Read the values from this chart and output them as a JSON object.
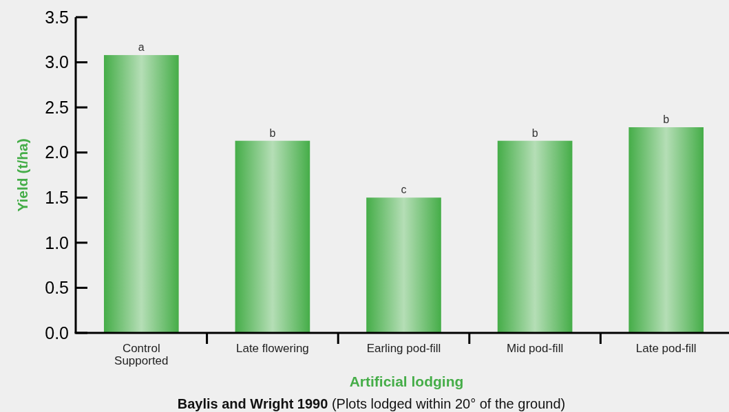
{
  "chart_data": {
    "type": "bar",
    "xlabel": "Artificial lodging",
    "ylabel": "Yield (t/ha)",
    "categories": [
      "Control\nSupported",
      "Late flowering",
      "Earling pod-fill",
      "Mid pod-fill",
      "Late pod-fill"
    ],
    "values": [
      3.08,
      2.13,
      1.5,
      2.13,
      2.28
    ],
    "color": "#45ad48",
    "ylim": [
      0,
      3.5
    ],
    "yticks": [
      {
        "value": 0,
        "label": "0.0"
      },
      0.5,
      {
        "value": 1,
        "label": "1.0"
      },
      1.5,
      {
        "value": 2,
        "label": "2.0"
      },
      2.5,
      {
        "value": 3,
        "label": "3.0"
      },
      3.5
    ],
    "grid": false,
    "annotations": [
      {
        "text": "a",
        "x": "Control\nSupported",
        "y": 3.08
      },
      {
        "text": "b",
        "x": "Late flowering",
        "y": 2.13
      },
      {
        "text": "c",
        "x": "Earling pod-fill",
        "y": 1.5
      },
      {
        "text": "b",
        "x": "Mid pod-fill",
        "y": 2.13
      },
      {
        "text": "b",
        "x": "Late pod-fill",
        "y": 2.28
      },
      "Baylis and Wright 1990",
      "(Plots lodged within 20° of the ground)"
    ]
  }
}
